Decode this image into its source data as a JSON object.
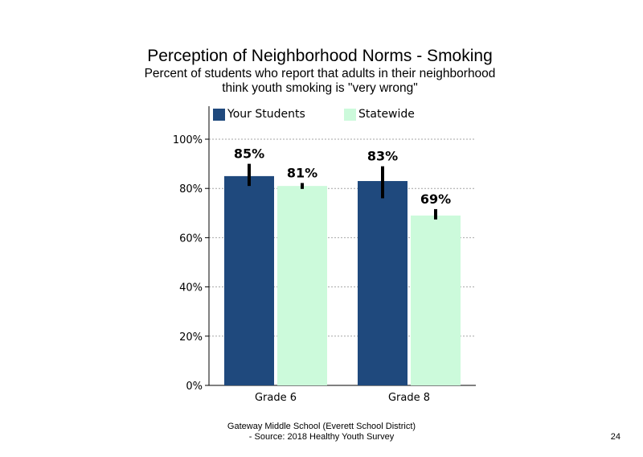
{
  "page": {
    "title": "Perception of Neighborhood Norms - Smoking",
    "subtitle_line1": "Percent of students who report that adults in their neighborhood",
    "subtitle_line2": "think youth smoking is \"very wrong\"",
    "footer_line1": "Gateway Middle School (Everett School District)",
    "footer_line2": "- Source: 2018 Healthy  Youth Survey",
    "page_number": "24"
  },
  "colors": {
    "your_students": "#1f497d",
    "statewide": "#ccfadb",
    "gridline": "#a6a6a6",
    "error_bar": "#000000"
  },
  "chart_data": {
    "type": "bar",
    "categories": [
      "Grade 6",
      "Grade 8"
    ],
    "series": [
      {
        "name": "Your Students",
        "values": [
          85,
          83
        ],
        "labels": [
          "85%",
          "83%"
        ],
        "error_low": [
          81,
          76
        ],
        "error_high": [
          90,
          89
        ]
      },
      {
        "name": "Statewide",
        "values": [
          81,
          69
        ],
        "labels": [
          "81%",
          "69%"
        ],
        "error_low": [
          79.8,
          67.4
        ],
        "error_high": [
          82.2,
          71.6
        ]
      }
    ],
    "y_ticks": [
      0,
      20,
      40,
      60,
      80,
      100
    ],
    "y_tick_labels": [
      "0%",
      "20%",
      "40%",
      "60%",
      "80%",
      "100%"
    ],
    "ylim": [
      0,
      110
    ],
    "gridlines": "dashed horizontal",
    "legend_position": "top"
  }
}
